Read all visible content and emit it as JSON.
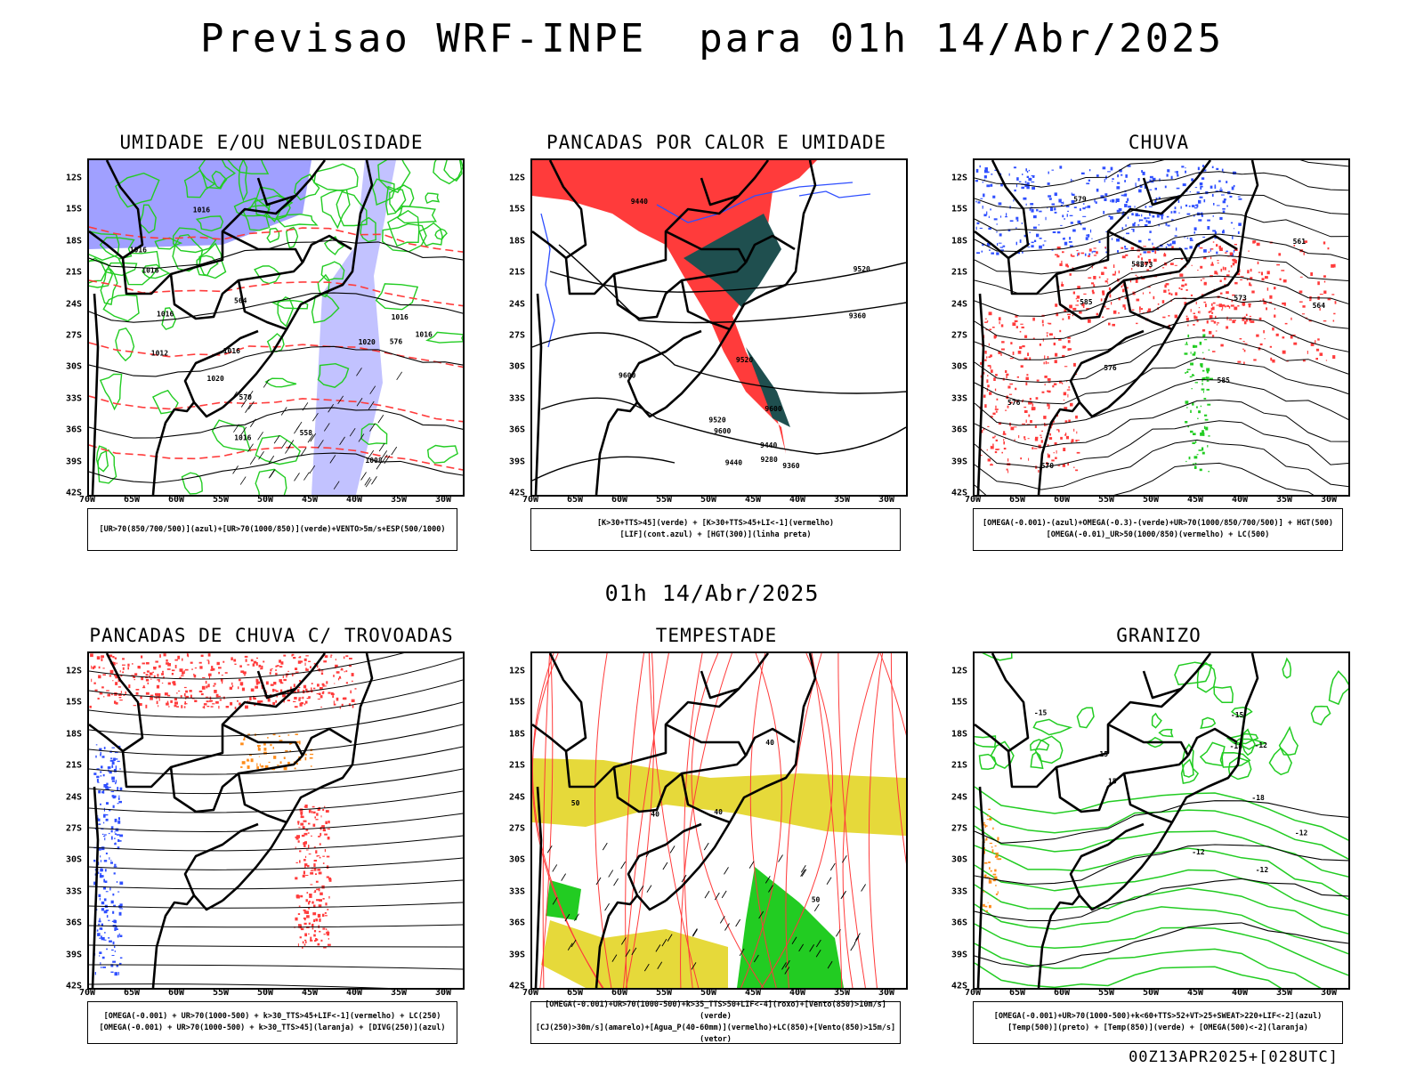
{
  "title": "Previsao WRF-INPE  para 01h 14/Abr/2025",
  "mid_label": "01h 14/Abr/2025",
  "stamp": "00Z13APR2025+[028UTC]",
  "lat_ticks": [
    "12S",
    "15S",
    "18S",
    "21S",
    "24S",
    "27S",
    "30S",
    "33S",
    "36S",
    "39S",
    "42S"
  ],
  "lon_ticks": [
    "70W",
    "65W",
    "60W",
    "55W",
    "50W",
    "45W",
    "40W",
    "35W",
    "30W"
  ],
  "colors": {
    "blue": "#2f4fff",
    "lightblue": "#8f8fff",
    "green": "#22cc22",
    "red": "#ff3b3b",
    "darkteal": "#1f4f4f",
    "orange": "#ff8c1a",
    "yellow": "#e6d93a",
    "black": "#000000"
  },
  "panels": [
    {
      "id": "umidade",
      "title": "UMIDADE E/OU NEBULOSIDADE",
      "caption": [
        "[UR>70(850/700/500)](azul)+[UR>70(1000/850)](verde)+VENTO>5m/s+ESP(500/1000)"
      ],
      "labels": [
        "1016",
        "1020",
        "1016",
        "1016",
        "1016",
        "1016",
        "1016",
        "1016",
        "1012",
        "1020",
        "1016",
        "1008",
        "570",
        "564",
        "558",
        "576"
      ]
    },
    {
      "id": "pancadas-calor",
      "title": "PANCADAS POR CALOR E UMIDADE",
      "caption": [
        "[K>30+TTS>45](verde) + [K>30+TTS>45+LI<-1](vermelho)",
        "[LIF](cont.azul) + [HGT(300)](linha preta)"
      ],
      "labels": [
        "9600",
        "9520",
        "9600",
        "9600",
        "9520",
        "9440",
        "9440",
        "9520",
        "9360",
        "9360",
        "9280",
        "9440"
      ]
    },
    {
      "id": "chuva",
      "title": "CHUVA",
      "caption": [
        "[OMEGA(-0.001)-(azul)+OMEGA(-0.3)-(verde)+UR>70(1000/850/700/500)] + HGT(500)",
        "[OMEGA(-0.01)_UR>50(1000/850)(vermelho) + LC(500)"
      ],
      "labels": [
        "585",
        "585",
        "582",
        "579",
        "576",
        "573",
        "570",
        "564",
        "561",
        "573",
        "576"
      ]
    },
    {
      "id": "pancadas-trovoadas",
      "title": "PANCADAS DE CHUVA C/ TROVOADAS",
      "caption": [
        "[OMEGA(-0.001) + UR>70(1000-500) + k>30_TTS>45+LIF<-1](vermelho) + LC(250)",
        "[OMEGA(-0.001) + UR>70(1000-500) + k>30_TTS>45](laranja) + [DIVG(250)](azul)"
      ],
      "labels": []
    },
    {
      "id": "tempestade",
      "title": "TEMPESTADE",
      "caption": [
        "[OMEGA(-0.001)+UR>70(1000-500)+k>35_TTS>50+LIF<-4](roxo)+[Vento(850)>10m/s](verde)",
        "[CJ(250)>30m/s](amarelo)+[Agua_P(40-60mm)](vermelho)+LC(850)+[Vento(850)>15m/s](vetor)"
      ],
      "labels": [
        "40",
        "40",
        "40",
        "50",
        "50"
      ]
    },
    {
      "id": "granizo",
      "title": "GRANIZO",
      "caption": [
        "[OMEGA(-0.001)+UR>70(1000-500)+k<60+TTS>52+VT>25+SWEAT>220+LIF<-2](azul)",
        "[Temp(500)](preto) + [Temp(850)](verde) + [OMEGA(500)<-2](laranja)"
      ],
      "labels": [
        "-12",
        "-12",
        "-12",
        "-12",
        "-15",
        "-15",
        "-18",
        "-18",
        "15",
        "15"
      ]
    }
  ]
}
